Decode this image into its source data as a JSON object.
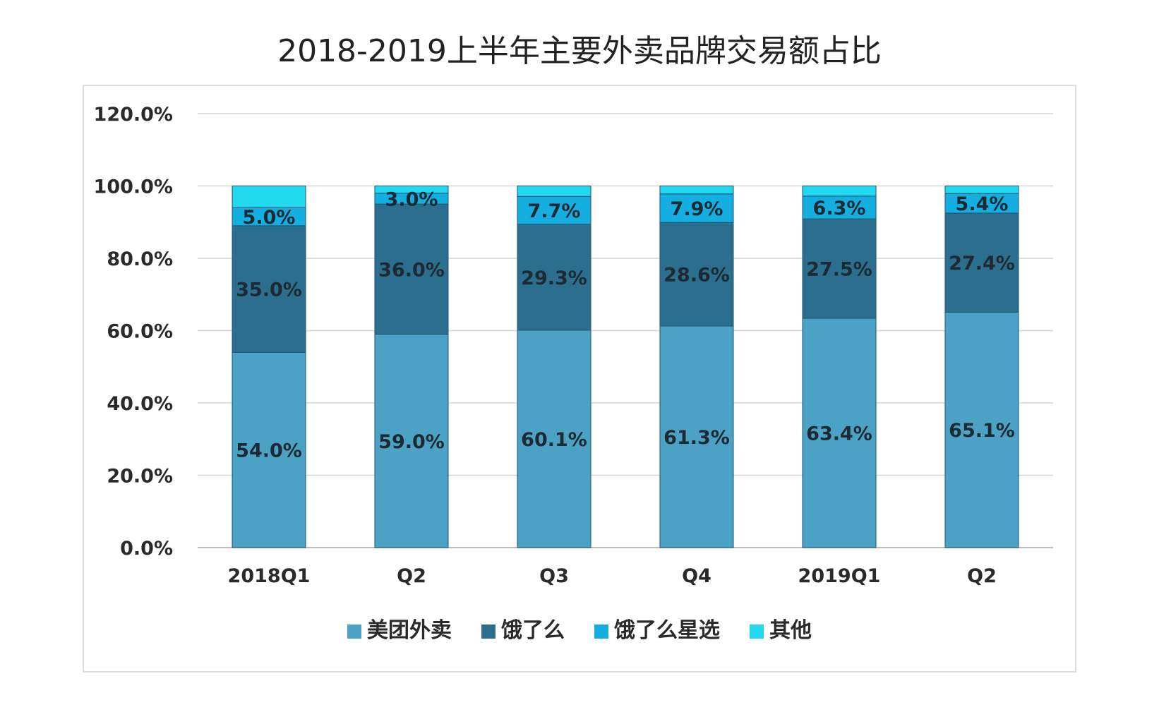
{
  "chart_data": {
    "type": "bar",
    "stacked": true,
    "title": "2018-2019上半年主要外卖品牌交易额占比",
    "categories": [
      "2018Q1",
      "Q2",
      "Q3",
      "Q4",
      "2019Q1",
      "Q2"
    ],
    "ylim": [
      0,
      120
    ],
    "yticks": [
      "0.0%",
      "20.0%",
      "40.0%",
      "60.0%",
      "80.0%",
      "100.0%",
      "120.0%"
    ],
    "grid": true,
    "legend_position": "bottom",
    "series": [
      {
        "name": "美团外卖",
        "color": "#4ba2c4",
        "values": [
          54.0,
          59.0,
          60.1,
          61.3,
          63.4,
          65.1
        ],
        "labels": [
          "54.0%",
          "59.0%",
          "60.1%",
          "61.3%",
          "63.4%",
          "65.1%"
        ]
      },
      {
        "name": "饿了么",
        "color": "#2b6e8d",
        "values": [
          35.0,
          36.0,
          29.3,
          28.6,
          27.5,
          27.4
        ],
        "labels": [
          "35.0%",
          "36.0%",
          "29.3%",
          "28.6%",
          "27.5%",
          "27.4%"
        ]
      },
      {
        "name": "饿了么星选",
        "color": "#14aee0",
        "values": [
          5.0,
          3.0,
          7.7,
          7.9,
          6.3,
          5.4
        ],
        "labels": [
          "5.0%",
          "3.0%",
          "7.7%",
          "7.9%",
          "6.3%",
          "5.4%"
        ]
      },
      {
        "name": "其他",
        "color": "#22d8f0",
        "values": [
          6.0,
          2.0,
          2.9,
          2.2,
          2.8,
          2.1
        ],
        "labels": [
          "",
          "",
          "",
          "",
          "",
          ""
        ]
      }
    ]
  }
}
